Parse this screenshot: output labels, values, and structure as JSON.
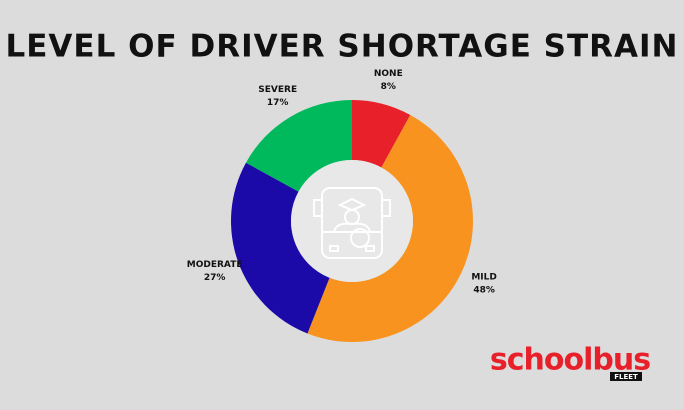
{
  "chart_data": {
    "type": "donut",
    "title": "LEVEL OF DRIVER SHORTAGE STRAIN",
    "categories": [
      "NONE",
      "MILD",
      "MODERATE",
      "SEVERE"
    ],
    "values": [
      8,
      48,
      27,
      17
    ],
    "value_labels": [
      "8%",
      "48%",
      "27%",
      "17%"
    ],
    "colors": [
      "#e8202a",
      "#f7931e",
      "#1c0aa8",
      "#00b95c"
    ]
  },
  "logo": {
    "text": "schoolbus",
    "sub": "FLEET"
  }
}
